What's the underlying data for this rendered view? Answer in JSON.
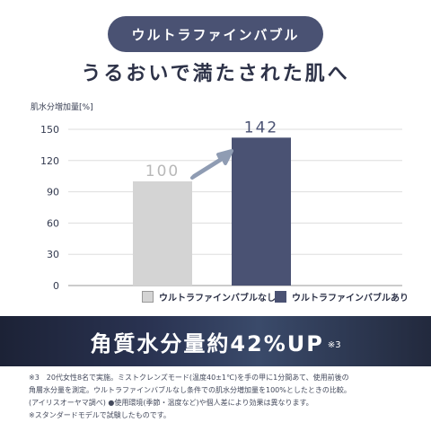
{
  "badge": "ウルトラファインバブル",
  "headline": "うるおいで満たされた肌へ",
  "chart_data": {
    "type": "bar",
    "ylabel": "肌水分増加量[%]",
    "categories": [
      "ウルトラファインバブルなし",
      "ウルトラファインバブルあり"
    ],
    "values": [
      100,
      142
    ],
    "value_labels": [
      "100",
      "142"
    ],
    "yticks": [
      "0",
      "30",
      "60",
      "90",
      "120",
      "150"
    ],
    "ylim": [
      0,
      150
    ],
    "grid": true,
    "colors": [
      "#d4d4d4",
      "#4a5273"
    ],
    "label_colors": [
      "#b8b8b8",
      "#4a5273"
    ],
    "legend_placement": "bottom"
  },
  "banner": {
    "text": "角質水分量約42%UP",
    "note": "※3"
  },
  "footnotes": [
    "※3　20代女性8名で実施。ミストクレンズモード(温度40±1℃)を手の甲に1分間あて、使用前後の",
    "角層水分量を測定。ウルトラファインバブルなし条件での肌水分増加量を100%としたときの比較。",
    "(アイリスオーヤマ調べ) ●使用環境(季節・温度など)や個人差により効果は異なります。",
    "※スタンダードモデルで試験したものです。"
  ]
}
